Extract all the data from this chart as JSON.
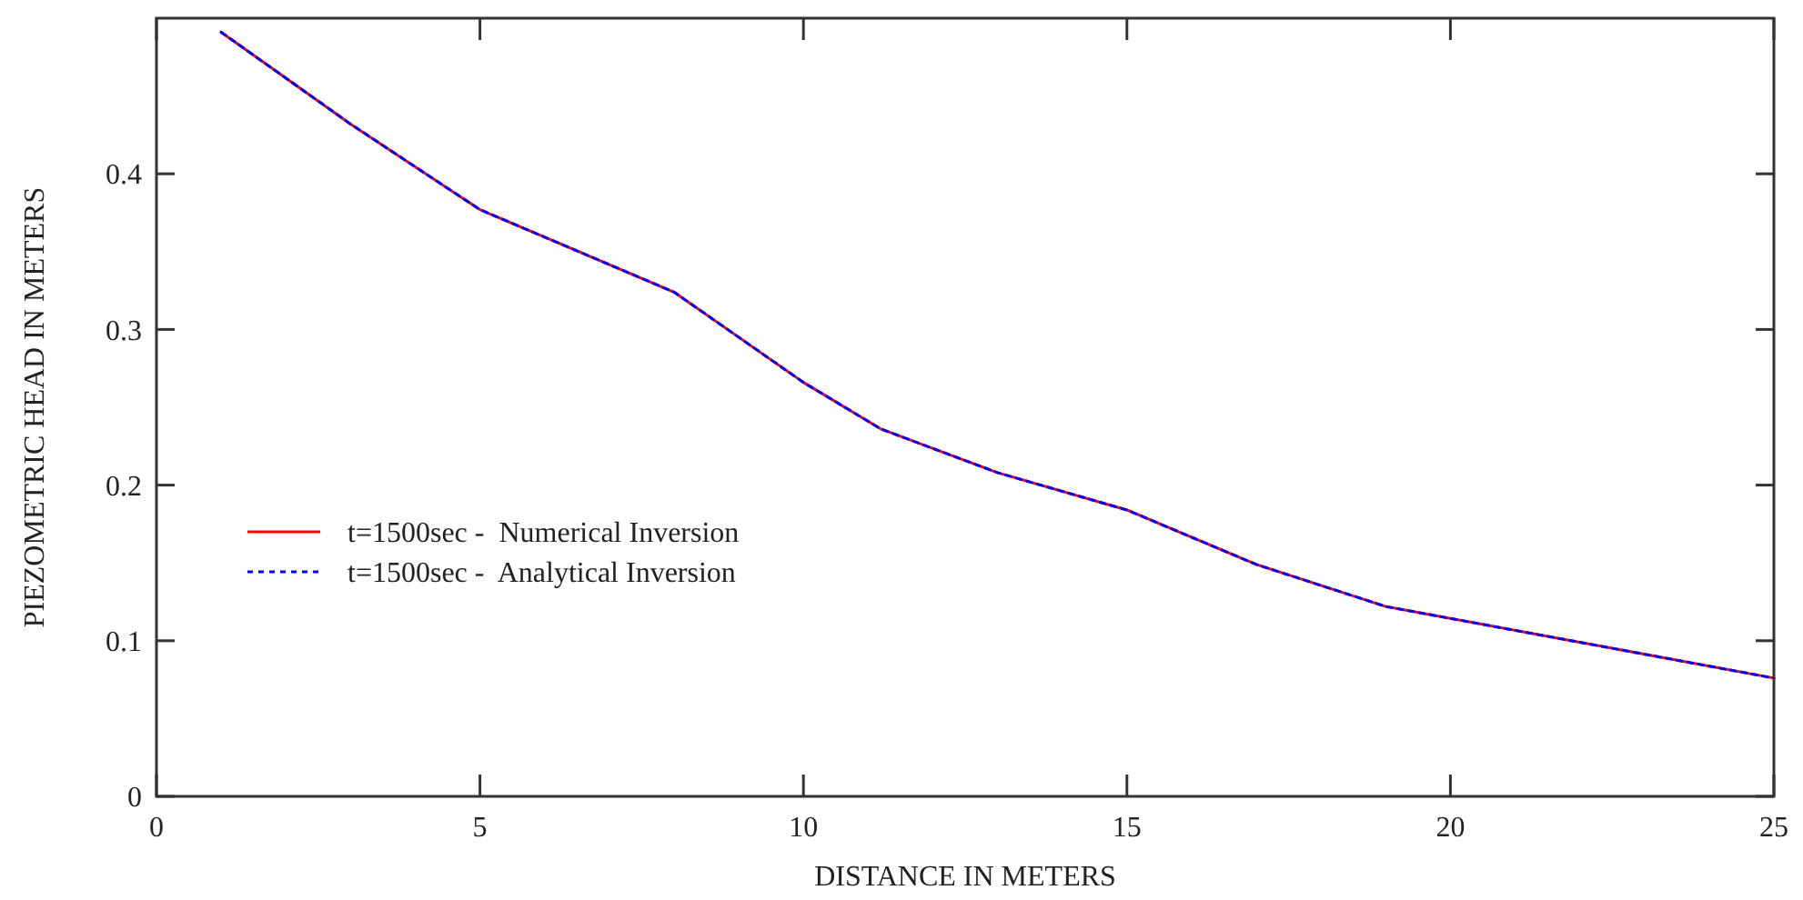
{
  "chart_data": {
    "type": "line",
    "xlabel": "DISTANCE IN METERS",
    "ylabel": "PIEZOMETRIC HEAD IN METERS",
    "x": [
      1,
      3,
      5,
      8,
      10,
      11.2,
      13,
      15,
      17,
      19,
      22,
      25
    ],
    "series": [
      {
        "name": "t=1500sec -  Numerical Inversion",
        "color": "#ff0000",
        "line_style": "solid",
        "values": [
          0.491,
          0.432,
          0.377,
          0.324,
          0.266,
          0.236,
          0.208,
          0.184,
          0.149,
          0.122,
          0.099,
          0.076
        ]
      },
      {
        "name": "t=1500sec -  Analytical Inversion",
        "color": "#0000ff",
        "line_style": "dotted",
        "values": [
          0.491,
          0.432,
          0.377,
          0.324,
          0.266,
          0.236,
          0.208,
          0.184,
          0.149,
          0.122,
          0.099,
          0.076
        ]
      }
    ],
    "xlim": [
      0,
      25
    ],
    "xticks": [
      0,
      5,
      10,
      15,
      20,
      25
    ],
    "ylim": [
      0,
      0.5
    ],
    "yticks": [
      0,
      0.1,
      0.2,
      0.3,
      0.4
    ],
    "grid": false,
    "legend": "left",
    "marker": "none"
  }
}
